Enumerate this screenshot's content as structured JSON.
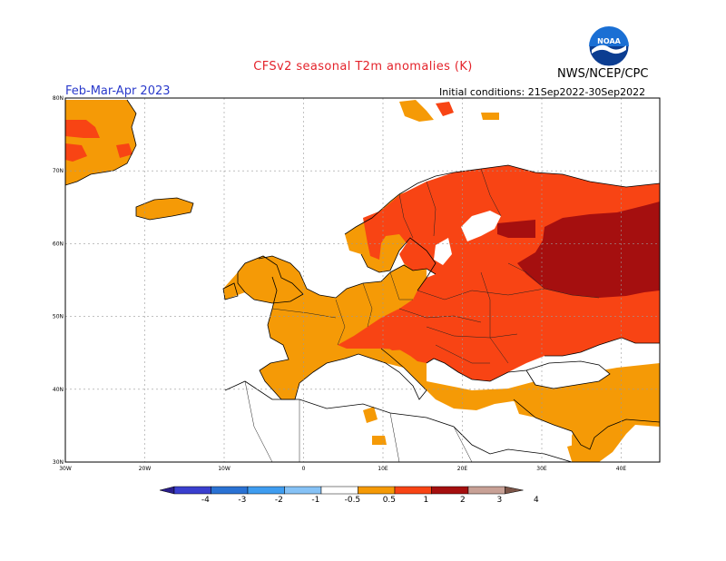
{
  "header": {
    "title": "CFSv2 seasonal T2m anomalies (K)",
    "agency": "NWS/NCEP/CPC",
    "period": "Feb-Mar-Apr 2023",
    "initial_conditions": "Initial conditions: 21Sep2022-30Sep2022",
    "logo_text": "NOAA"
  },
  "axes": {
    "lat_ticks": [
      "80N",
      "70N",
      "60N",
      "50N",
      "40N",
      "30N"
    ],
    "lon_ticks": [
      "30W",
      "20W",
      "10W",
      "0",
      "10E",
      "20E",
      "30E",
      "40E"
    ]
  },
  "colorbar": {
    "labels": [
      "-4",
      "-3",
      "-2",
      "-1",
      "-0.5",
      "0.5",
      "1",
      "2",
      "3",
      "4"
    ],
    "colors": [
      "#2a1e8a",
      "#3a3fcf",
      "#2a72d4",
      "#3f9df0",
      "#86c2f6",
      "#ffffff",
      "#f59a06",
      "#f84414",
      "#a50f0f",
      "#c8a196",
      "#7c5548"
    ]
  },
  "anomaly_colors": {
    "0.5 to 1": "#f59a06",
    "1 to 2": "#f84414",
    "2 to 3": "#a50f0f"
  }
}
